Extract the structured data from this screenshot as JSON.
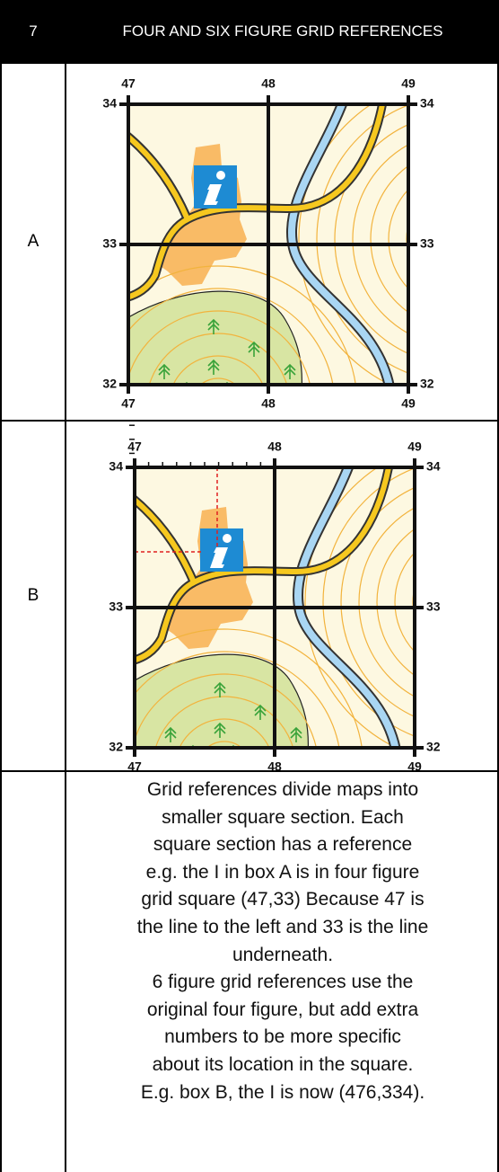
{
  "header": {
    "number": "7",
    "title": "FOUR AND SIX FIGURE GRID REFERENCES"
  },
  "rows": [
    {
      "label": "A",
      "map": {
        "top": [
          "47",
          "48",
          "49"
        ],
        "bottom": [
          "47",
          "48",
          "49"
        ],
        "left": [
          "34",
          "33",
          "32"
        ],
        "right": [
          "34",
          "33",
          "32"
        ]
      }
    },
    {
      "label": "B",
      "map": {
        "top": [
          "47",
          "48",
          "49"
        ],
        "bottom": [
          "47",
          "48",
          "49"
        ],
        "left": [
          "34",
          "33",
          "32"
        ],
        "right": [
          "34",
          "33",
          "32"
        ]
      }
    }
  ],
  "explanation": {
    "lines": [
      "Grid references divide maps into",
      "smaller square section. Each",
      "square section has a reference",
      "e.g. the I in box A is in four figure",
      "grid square (47,33) Because 47 is",
      "the line to the left and 33 is the line",
      "underneath.",
      "6 figure grid references use the",
      "original four figure, but add extra",
      "numbers to be more specific",
      "about its location in the square.",
      "E.g. box B, the I is now (476,334)."
    ]
  }
}
